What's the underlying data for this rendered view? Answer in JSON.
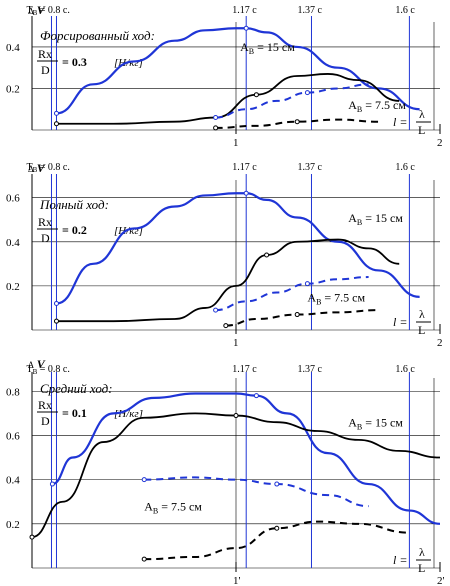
{
  "colors": {
    "blue": "#1f35d6",
    "black": "#000000",
    "grid": "#000000"
  },
  "chart_data": [
    {
      "type": "line",
      "panel_label": "Форсированный ход:",
      "ratio": {
        "num": "Rx",
        "den": "D",
        "value": "= 0.3",
        "unit": "[Н/кг]"
      },
      "ylabel": "ΔV",
      "xlabel": {
        "lhs": "l =",
        "num": "λ",
        "den": "L"
      },
      "yticks": [
        {
          "v": 0.2,
          "label": "0.2"
        },
        {
          "v": 0.4,
          "label": "0.4"
        }
      ],
      "xticks": [
        {
          "v": 1,
          "label": "1"
        },
        {
          "v": 2,
          "label": "2"
        }
      ],
      "xlim": [
        0.0,
        2.0
      ],
      "ylim": [
        0.0,
        0.52
      ],
      "time_marks": [
        {
          "x": 0.12,
          "label": "T",
          "sub": "B",
          "rest": " = 0.8 c."
        },
        {
          "x": 1.05,
          "label": "1.17 c",
          "sub": "",
          "rest": ""
        },
        {
          "x": 1.37,
          "label": "1.37 c",
          "sub": "",
          "rest": ""
        },
        {
          "x": 1.85,
          "label": "1.6 c",
          "sub": "",
          "rest": ""
        }
      ],
      "series": [
        {
          "name": "A_B = 15 см",
          "name_main": "A",
          "name_sub": "B",
          "name_rest": " = 15 см",
          "color": "blue",
          "style": "solid",
          "width": 2.2,
          "x": [
            0.12,
            0.3,
            0.5,
            0.7,
            0.85,
            1.0,
            1.05,
            1.15,
            1.3,
            1.5,
            1.7,
            1.9
          ],
          "y": [
            0.08,
            0.22,
            0.33,
            0.43,
            0.48,
            0.49,
            0.49,
            0.47,
            0.4,
            0.3,
            0.2,
            0.1
          ]
        },
        {
          "name": "",
          "color": "black",
          "style": "solid",
          "width": 1.8,
          "x": [
            0.12,
            0.4,
            0.7,
            0.9,
            1.1,
            1.3,
            1.45,
            1.6,
            1.8
          ],
          "y": [
            0.03,
            0.03,
            0.04,
            0.06,
            0.17,
            0.26,
            0.27,
            0.24,
            0.14
          ]
        },
        {
          "name": "A_B = 7.5 см",
          "name_main": "A",
          "name_sub": "B",
          "name_rest": " = 7.5 см",
          "color": "blue",
          "style": "dashed",
          "width": 2,
          "x": [
            0.9,
            1.05,
            1.2,
            1.35,
            1.5,
            1.65
          ],
          "y": [
            0.06,
            0.1,
            0.14,
            0.18,
            0.2,
            0.22
          ]
        },
        {
          "name": "",
          "color": "black",
          "style": "dashed",
          "width": 2,
          "x": [
            0.9,
            1.1,
            1.3,
            1.5,
            1.7
          ],
          "y": [
            0.01,
            0.02,
            0.04,
            0.05,
            0.04
          ]
        }
      ],
      "labels": [
        {
          "series": 0,
          "x": 1.02,
          "y": 0.38
        },
        {
          "series": 2,
          "x": 1.55,
          "y": 0.1
        }
      ]
    },
    {
      "type": "line",
      "panel_label": "Полный ход:",
      "ratio": {
        "num": "Rx",
        "den": "D",
        "value": "= 0.2",
        "unit": "[Н/кг]"
      },
      "ylabel": "ΔV",
      "xlabel": {
        "lhs": "l =",
        "num": "λ",
        "den": "L"
      },
      "yticks": [
        {
          "v": 0.2,
          "label": "0.2"
        },
        {
          "v": 0.4,
          "label": "0.4"
        },
        {
          "v": 0.6,
          "label": "0.6"
        }
      ],
      "xticks": [
        {
          "v": 1,
          "label": "1"
        },
        {
          "v": 2,
          "label": "2"
        }
      ],
      "xlim": [
        0.0,
        2.0
      ],
      "ylim": [
        0.0,
        0.68
      ],
      "time_marks": [
        {
          "x": 0.12,
          "label": "T",
          "sub": "B",
          "rest": " = 0.8 c."
        },
        {
          "x": 1.05,
          "label": "1.17 c",
          "sub": "",
          "rest": ""
        },
        {
          "x": 1.37,
          "label": "1.37 c",
          "sub": "",
          "rest": ""
        },
        {
          "x": 1.85,
          "label": "1.6 c",
          "sub": "",
          "rest": ""
        }
      ],
      "series": [
        {
          "name": "A_B = 15 см",
          "name_main": "A",
          "name_sub": "B",
          "name_rest": " = 15 см",
          "color": "blue",
          "style": "solid",
          "width": 2.2,
          "x": [
            0.12,
            0.3,
            0.5,
            0.7,
            0.85,
            1.0,
            1.05,
            1.15,
            1.3,
            1.5,
            1.7,
            1.9
          ],
          "y": [
            0.12,
            0.3,
            0.46,
            0.56,
            0.61,
            0.62,
            0.62,
            0.59,
            0.51,
            0.4,
            0.27,
            0.15
          ]
        },
        {
          "name": "",
          "color": "black",
          "style": "solid",
          "width": 1.8,
          "x": [
            0.12,
            0.4,
            0.7,
            0.85,
            1.0,
            1.15,
            1.3,
            1.5,
            1.65,
            1.8
          ],
          "y": [
            0.04,
            0.04,
            0.05,
            0.1,
            0.2,
            0.34,
            0.4,
            0.41,
            0.37,
            0.3
          ]
        },
        {
          "name": "A_B = 7.5 см",
          "name_main": "A",
          "name_sub": "B",
          "name_rest": " = 7.5 см",
          "color": "blue",
          "style": "dashed",
          "width": 2,
          "x": [
            0.9,
            1.05,
            1.2,
            1.35,
            1.5,
            1.65
          ],
          "y": [
            0.09,
            0.13,
            0.17,
            0.21,
            0.23,
            0.24
          ]
        },
        {
          "name": "",
          "color": "black",
          "style": "dashed",
          "width": 2,
          "x": [
            0.95,
            1.1,
            1.3,
            1.5,
            1.7
          ],
          "y": [
            0.02,
            0.05,
            0.07,
            0.08,
            0.09
          ]
        }
      ],
      "labels": [
        {
          "series": 0,
          "x": 1.55,
          "y": 0.49
        },
        {
          "series": 2,
          "x": 1.35,
          "y": 0.13
        }
      ]
    },
    {
      "type": "line",
      "panel_label": "Средний ход:",
      "ratio": {
        "num": "Rx",
        "den": "D",
        "value": "= 0.1",
        "unit": "[Н/кг]"
      },
      "ylabel": "ΔV",
      "xlabel": {
        "lhs": "l =",
        "num": "λ",
        "den": "L"
      },
      "yticks": [
        {
          "v": 0.2,
          "label": "0.2"
        },
        {
          "v": 0.4,
          "label": "0.4"
        },
        {
          "v": 0.6,
          "label": "0.6"
        },
        {
          "v": 0.8,
          "label": "0.8"
        }
      ],
      "xticks": [
        {
          "v": 1,
          "label": "1'"
        },
        {
          "v": 2,
          "label": "2'"
        }
      ],
      "xlim": [
        0.0,
        2.0
      ],
      "ylim": [
        0.0,
        0.86
      ],
      "time_marks": [
        {
          "x": 0.12,
          "label": "T",
          "sub": "B",
          "rest": " = 0.8 c."
        },
        {
          "x": 1.05,
          "label": "1.17 c",
          "sub": "",
          "rest": ""
        },
        {
          "x": 1.37,
          "label": "1.37 c",
          "sub": "",
          "rest": ""
        },
        {
          "x": 1.85,
          "label": "1.6 c",
          "sub": "",
          "rest": ""
        }
      ],
      "series": [
        {
          "name": "A_B = 15 см",
          "name_main": "A",
          "name_sub": "B",
          "name_rest": " = 15 см",
          "color": "blue",
          "style": "solid",
          "width": 2.2,
          "x": [
            0.1,
            0.2,
            0.4,
            0.6,
            0.8,
            1.0,
            1.1,
            1.25,
            1.45,
            1.65,
            1.85,
            2.0
          ],
          "y": [
            0.38,
            0.5,
            0.7,
            0.77,
            0.79,
            0.79,
            0.78,
            0.7,
            0.52,
            0.38,
            0.26,
            0.2
          ]
        },
        {
          "name": "",
          "color": "black",
          "style": "solid",
          "width": 1.8,
          "x": [
            0.0,
            0.15,
            0.35,
            0.55,
            0.8,
            1.0,
            1.2,
            1.4,
            1.6,
            1.8,
            2.0
          ],
          "y": [
            0.14,
            0.3,
            0.57,
            0.68,
            0.7,
            0.69,
            0.66,
            0.62,
            0.58,
            0.53,
            0.5
          ]
        },
        {
          "name": "A_B = 7.5 см",
          "name_main": "A",
          "name_sub": "B",
          "name_rest": " = 7.5 см",
          "color": "blue",
          "style": "dashed",
          "width": 2,
          "x": [
            0.55,
            0.8,
            1.0,
            1.2,
            1.45,
            1.65
          ],
          "y": [
            0.4,
            0.41,
            0.4,
            0.38,
            0.33,
            0.28
          ]
        },
        {
          "name": "",
          "color": "black",
          "style": "dashed",
          "width": 2,
          "x": [
            0.55,
            0.8,
            1.0,
            1.2,
            1.4,
            1.6,
            1.85
          ],
          "y": [
            0.04,
            0.05,
            0.09,
            0.18,
            0.21,
            0.2,
            0.16
          ]
        }
      ],
      "labels": [
        {
          "series": 0,
          "x": 1.55,
          "y": 0.64
        },
        {
          "series": 2,
          "x": 0.55,
          "y": 0.26
        }
      ]
    }
  ]
}
